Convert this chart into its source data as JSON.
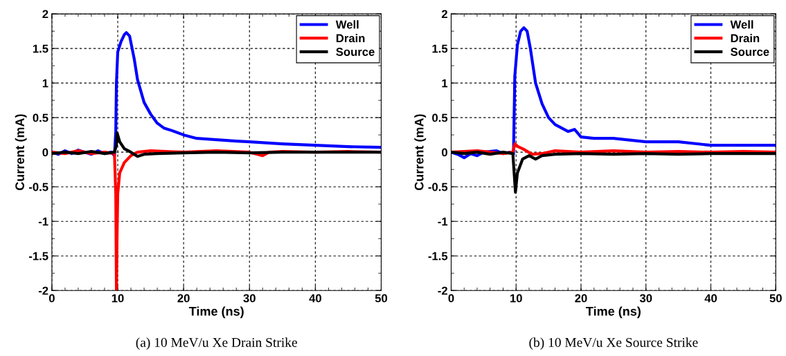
{
  "chart_data": [
    {
      "type": "line",
      "xlabel": "Time (ns)",
      "ylabel": "Current (mA)",
      "annotations": [
        "(a) 10 MeV/u Xe Drain Strike"
      ],
      "xlim": [
        0,
        50
      ],
      "ylim": [
        -2,
        2
      ],
      "xticks": [
        0,
        {
          "value": 2,
          "label": null
        },
        {
          "value": 4,
          "label": null
        },
        {
          "value": 6,
          "label": null
        },
        {
          "value": 8,
          "label": null
        },
        10,
        {
          "value": 12,
          "label": null
        },
        {
          "value": 14,
          "label": null
        },
        {
          "value": 16,
          "label": null
        },
        {
          "value": 18,
          "label": null
        },
        20,
        {
          "value": 22,
          "label": null
        },
        {
          "value": 24,
          "label": null
        },
        {
          "value": 26,
          "label": null
        },
        {
          "value": 28,
          "label": null
        },
        30,
        {
          "value": 32,
          "label": null
        },
        {
          "value": 34,
          "label": null
        },
        {
          "value": 36,
          "label": null
        },
        {
          "value": 38,
          "label": null
        },
        40,
        {
          "value": 42,
          "label": null
        },
        {
          "value": 44,
          "label": null
        },
        {
          "value": 46,
          "label": null
        },
        {
          "value": 48,
          "label": null
        },
        50
      ],
      "yticks": [
        -2,
        {
          "value": -1.75,
          "label": null
        },
        -1.5,
        {
          "value": -1.25,
          "label": null
        },
        -1,
        {
          "value": -0.75,
          "label": null
        },
        -0.5,
        {
          "value": -0.25,
          "label": null
        },
        0,
        {
          "value": 0.25,
          "label": null
        },
        0.5,
        {
          "value": 0.75,
          "label": null
        },
        1,
        {
          "value": 1.25,
          "label": null
        },
        1.5,
        {
          "value": 1.75,
          "label": null
        },
        2
      ],
      "grid": true,
      "legend": "top right",
      "line_style": "solid",
      "marker": "none",
      "series": [
        {
          "name": "Well",
          "color": "#0000ff",
          "x": [
            0,
            1,
            2,
            3,
            4,
            5,
            6,
            7,
            8,
            9,
            9.5,
            9.7,
            9.8,
            10,
            10.5,
            11,
            11.3,
            11.8,
            12.5,
            13,
            14,
            15,
            16,
            17,
            18,
            20,
            22,
            25,
            28,
            30,
            35,
            40,
            45,
            50
          ],
          "values": [
            0.0,
            -0.03,
            0.02,
            -0.02,
            0.03,
            0.0,
            -0.03,
            0.02,
            -0.02,
            0.0,
            -0.05,
            0.3,
            1.0,
            1.45,
            1.6,
            1.7,
            1.73,
            1.68,
            1.35,
            1.05,
            0.72,
            0.55,
            0.42,
            0.35,
            0.32,
            0.25,
            0.2,
            0.18,
            0.16,
            0.15,
            0.12,
            0.1,
            0.08,
            0.07
          ]
        },
        {
          "name": "Drain",
          "color": "#ff0000",
          "x": [
            0,
            2,
            4,
            6,
            8,
            9.5,
            9.7,
            9.8,
            9.9,
            10,
            10.3,
            11,
            12,
            13,
            15,
            20,
            25,
            30,
            32,
            33,
            35,
            40,
            45,
            50
          ],
          "values": [
            0.0,
            -0.02,
            0.02,
            -0.02,
            0.0,
            -0.02,
            -0.6,
            -2.0,
            -1.2,
            -0.6,
            -0.3,
            -0.15,
            -0.05,
            0.0,
            0.02,
            0.0,
            0.02,
            0.0,
            -0.05,
            0.0,
            0.01,
            0.0,
            0.01,
            0.0
          ]
        },
        {
          "name": "Source",
          "color": "#000000",
          "x": [
            0,
            2,
            4,
            6,
            8,
            9.5,
            9.8,
            9.9,
            10.3,
            11,
            12,
            13,
            14,
            16,
            20,
            25,
            30,
            35,
            40,
            45,
            50
          ],
          "values": [
            -0.02,
            0.0,
            -0.02,
            0.01,
            -0.02,
            0.0,
            0.1,
            0.28,
            0.15,
            0.05,
            0.0,
            -0.06,
            -0.03,
            -0.02,
            -0.01,
            0.0,
            -0.01,
            0.0,
            0.0,
            0.0,
            0.0
          ]
        }
      ]
    },
    {
      "type": "line",
      "xlabel": "Time (ns)",
      "ylabel": "Current (mA)",
      "annotations": [
        "(b) 10 MeV/u Xe Source Strike"
      ],
      "xlim": [
        0,
        50
      ],
      "ylim": [
        -2,
        2
      ],
      "xticks": [
        0,
        {
          "value": 2,
          "label": null
        },
        {
          "value": 4,
          "label": null
        },
        {
          "value": 6,
          "label": null
        },
        {
          "value": 8,
          "label": null
        },
        10,
        {
          "value": 12,
          "label": null
        },
        {
          "value": 14,
          "label": null
        },
        {
          "value": 16,
          "label": null
        },
        {
          "value": 18,
          "label": null
        },
        20,
        {
          "value": 22,
          "label": null
        },
        {
          "value": 24,
          "label": null
        },
        {
          "value": 26,
          "label": null
        },
        {
          "value": 28,
          "label": null
        },
        30,
        {
          "value": 32,
          "label": null
        },
        {
          "value": 34,
          "label": null
        },
        {
          "value": 36,
          "label": null
        },
        {
          "value": 38,
          "label": null
        },
        40,
        {
          "value": 42,
          "label": null
        },
        {
          "value": 44,
          "label": null
        },
        {
          "value": 46,
          "label": null
        },
        {
          "value": 48,
          "label": null
        },
        50
      ],
      "yticks": [
        -2,
        {
          "value": -1.75,
          "label": null
        },
        -1.5,
        {
          "value": -1.25,
          "label": null
        },
        -1,
        {
          "value": -0.75,
          "label": null
        },
        -0.5,
        {
          "value": -0.25,
          "label": null
        },
        0,
        {
          "value": 0.25,
          "label": null
        },
        0.5,
        {
          "value": 0.75,
          "label": null
        },
        1,
        {
          "value": 1.25,
          "label": null
        },
        1.5,
        {
          "value": 1.75,
          "label": null
        },
        2
      ],
      "grid": true,
      "legend": "top right",
      "line_style": "solid",
      "marker": "none",
      "series": [
        {
          "name": "Well",
          "color": "#0000ff",
          "x": [
            0,
            1,
            2,
            3,
            4,
            5,
            7,
            8,
            9,
            9.6,
            9.8,
            10.2,
            10.7,
            11.2,
            11.7,
            12.2,
            13,
            14,
            15,
            16,
            17,
            18,
            19,
            20,
            22,
            25,
            28,
            30,
            35,
            40,
            45,
            50
          ],
          "values": [
            0.0,
            -0.03,
            -0.08,
            -0.02,
            -0.05,
            0.0,
            0.02,
            -0.02,
            0.0,
            -0.03,
            1.1,
            1.55,
            1.75,
            1.8,
            1.75,
            1.5,
            1.0,
            0.7,
            0.5,
            0.4,
            0.35,
            0.3,
            0.33,
            0.22,
            0.2,
            0.2,
            0.17,
            0.15,
            0.15,
            0.1,
            0.1,
            0.1
          ]
        },
        {
          "name": "Drain",
          "color": "#ff0000",
          "x": [
            0,
            4,
            6,
            8,
            9.5,
            9.8,
            10.3,
            11,
            12.5,
            14,
            16,
            20,
            25,
            30,
            35,
            40,
            45,
            50
          ],
          "values": [
            0.0,
            0.02,
            0.0,
            -0.02,
            0.0,
            0.12,
            0.08,
            0.05,
            -0.03,
            -0.02,
            0.02,
            0.0,
            0.02,
            0.0,
            0.01,
            0.0,
            0.01,
            0.0
          ]
        },
        {
          "name": "Source",
          "color": "#000000",
          "x": [
            0,
            2,
            4,
            6,
            8,
            9.5,
            9.7,
            9.9,
            10.2,
            11,
            12,
            13,
            14,
            16,
            20,
            25,
            30,
            35,
            40,
            45,
            50
          ],
          "values": [
            0.0,
            -0.02,
            0.0,
            -0.03,
            0.0,
            -0.02,
            -0.3,
            -0.58,
            -0.3,
            -0.1,
            -0.05,
            -0.1,
            -0.05,
            -0.03,
            -0.02,
            -0.03,
            -0.02,
            -0.03,
            -0.02,
            -0.02,
            -0.02
          ]
        }
      ]
    }
  ]
}
